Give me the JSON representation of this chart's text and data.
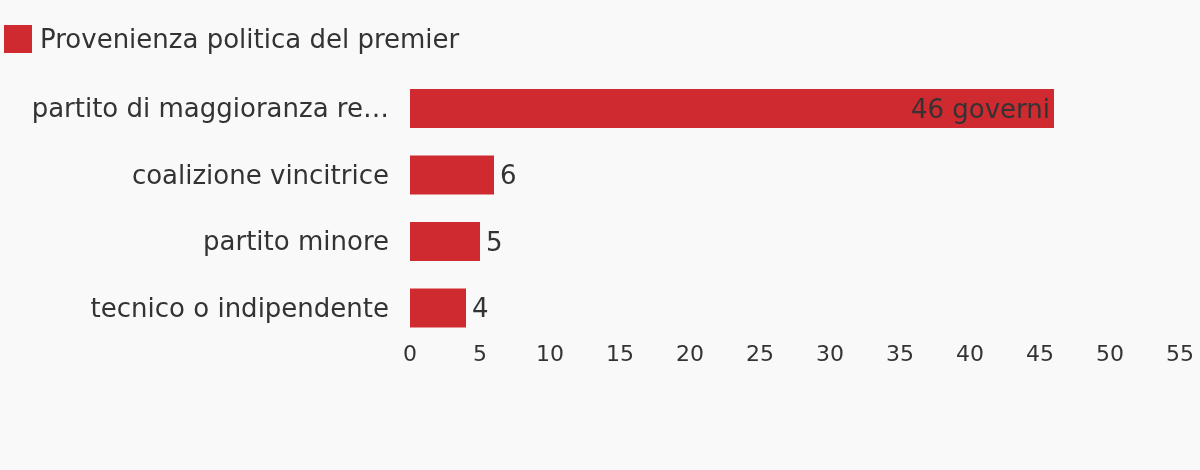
{
  "chart_data": {
    "type": "bar",
    "orientation": "horizontal",
    "categories": [
      "partito di maggioranza re…",
      "coalizione vincitrice",
      "partito minore",
      "tecnico o indipendente"
    ],
    "series": [
      {
        "name": "Provenienza politica del premier",
        "color": "#cf2a30",
        "values": [
          46,
          6,
          5,
          4
        ],
        "value_labels": [
          "46 governi",
          "6",
          "5",
          "4"
        ]
      }
    ],
    "xlim": [
      0,
      55
    ],
    "xticks": [
      0,
      5,
      10,
      15,
      20,
      25,
      30,
      35,
      40,
      45,
      50,
      55
    ],
    "grid": false,
    "legend": "top left"
  }
}
